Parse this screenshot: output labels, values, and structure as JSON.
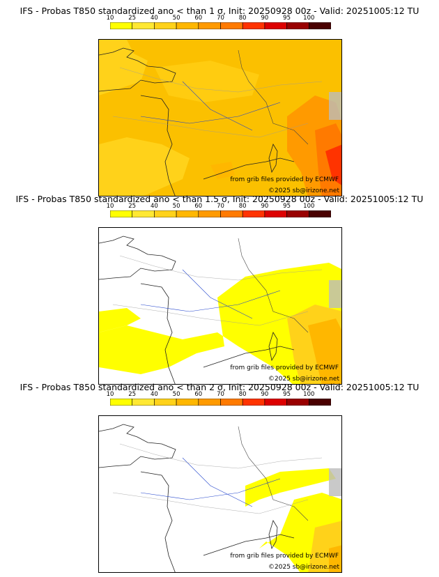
{
  "legend": {
    "ticks": [
      "10",
      "25",
      "40",
      "50",
      "60",
      "70",
      "80",
      "90",
      "95",
      "100"
    ],
    "colors": [
      "#ffff00",
      "#ffe833",
      "#ffd21a",
      "#ffb700",
      "#ff9a00",
      "#ff7a00",
      "#ff3300",
      "#dd0000",
      "#990000",
      "#4a0000"
    ]
  },
  "panels": [
    {
      "title": "IFS - Probas T850  standardized ano < than 1 σ, Init: 20250928 00z - Valid: 20251005:12 TU",
      "credit_source": "from grib files provided by ECMWF",
      "credit_copyright": "©2025 sb@irizone.net",
      "probability_level": "high"
    },
    {
      "title": "IFS - Probas T850  standardized ano < than 1.5 σ, Init: 20250928 00z - Valid: 20251005:12 TU",
      "credit_source": "from grib files provided by ECMWF",
      "credit_copyright": "©2025 sb@irizone.net",
      "probability_level": "medium"
    },
    {
      "title": "IFS - Probas T850  standardized ano < than 2 σ, Init: 20250928 00z - Valid: 20251005:12 TU",
      "credit_source": "from grib files provided by ECMWF",
      "credit_copyright": "©2025 sb@irizone.net",
      "probability_level": "low"
    }
  ]
}
